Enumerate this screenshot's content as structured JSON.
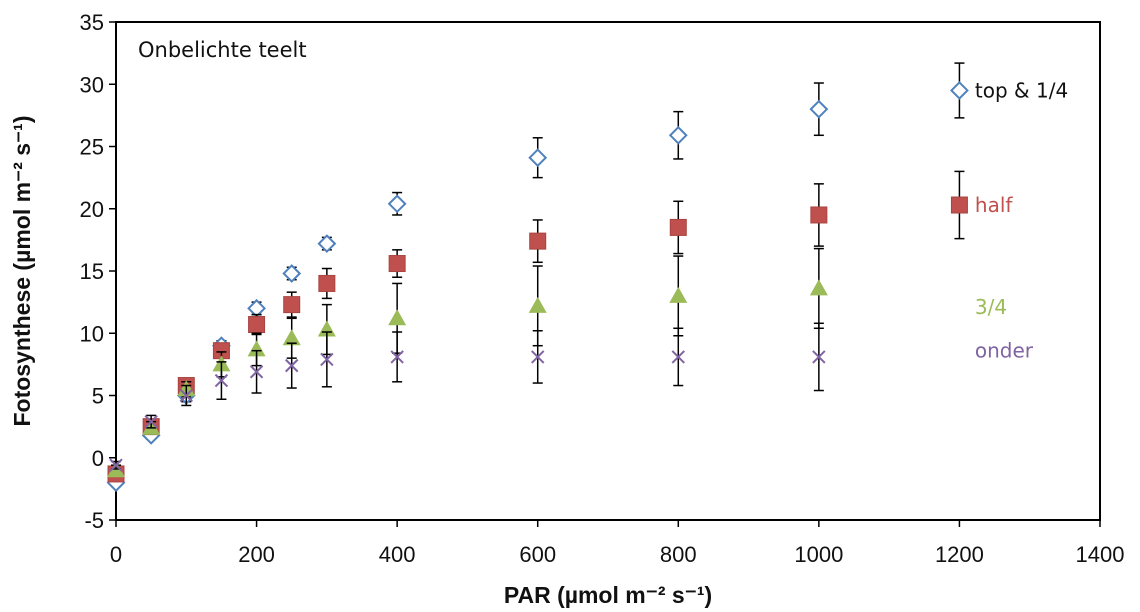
{
  "chart_data": {
    "type": "scatter",
    "title": "Onbelichte teelt",
    "xlabel": "PAR (µmol m⁻² s⁻¹)",
    "ylabel": "Fotosynthese (µmol m⁻² s⁻¹)",
    "xlim": [
      0,
      1400
    ],
    "ylim": [
      -5,
      35
    ],
    "xticks": [
      "0",
      "200",
      "400",
      "600",
      "800",
      "1000",
      "1200",
      "1400"
    ],
    "yticks": [
      "-5",
      "0",
      "5",
      "10",
      "15",
      "20",
      "25",
      "30",
      "35"
    ],
    "grid": false,
    "legend": "right",
    "series": [
      {
        "name": "top & 1/4",
        "marker": "diamond-open",
        "color": "#4f81bd",
        "x": [
          0,
          50,
          100,
          150,
          200,
          250,
          300,
          400,
          600,
          800,
          1000
        ],
        "y": [
          -2.0,
          1.8,
          5.0,
          9.0,
          12.0,
          14.8,
          17.2,
          20.4,
          24.1,
          25.9,
          28.0
        ],
        "err": [
          0.3,
          0.3,
          0.5,
          0.4,
          0.5,
          0.5,
          0.5,
          0.9,
          1.6,
          1.9,
          2.1
        ]
      },
      {
        "name": "half",
        "marker": "square",
        "color": "#c0504d",
        "x": [
          0,
          50,
          100,
          150,
          200,
          250,
          300,
          400,
          600,
          800,
          1000
        ],
        "y": [
          -1.3,
          2.5,
          5.8,
          8.6,
          10.7,
          12.3,
          14.0,
          15.6,
          17.4,
          18.5,
          19.5
        ],
        "err": [
          0.4,
          0.5,
          0.5,
          0.6,
          0.8,
          1.0,
          1.2,
          1.1,
          1.7,
          2.1,
          2.5
        ]
      },
      {
        "name": "3/4",
        "marker": "triangle",
        "color": "#9bbb59",
        "x": [
          0,
          50,
          100,
          150,
          200,
          250,
          300,
          400,
          600,
          800,
          1000
        ],
        "y": [
          -1.0,
          2.4,
          5.5,
          7.5,
          8.7,
          9.6,
          10.3,
          11.2,
          12.2,
          13.0,
          13.6
        ],
        "err": [
          0.4,
          0.5,
          0.6,
          1.0,
          1.3,
          1.6,
          2.0,
          2.8,
          3.2,
          3.2,
          3.2
        ]
      },
      {
        "name": "onder",
        "marker": "x",
        "color": "#8064a2",
        "x": [
          0,
          50,
          100,
          150,
          200,
          250,
          300,
          400,
          600,
          800,
          1000
        ],
        "y": [
          -0.6,
          2.9,
          5.0,
          6.2,
          6.9,
          7.4,
          7.9,
          8.1,
          8.1,
          8.1,
          8.1
        ],
        "err": [
          0.3,
          0.5,
          0.8,
          1.5,
          1.7,
          1.8,
          2.2,
          2.0,
          2.1,
          2.3,
          2.7
        ]
      }
    ]
  }
}
